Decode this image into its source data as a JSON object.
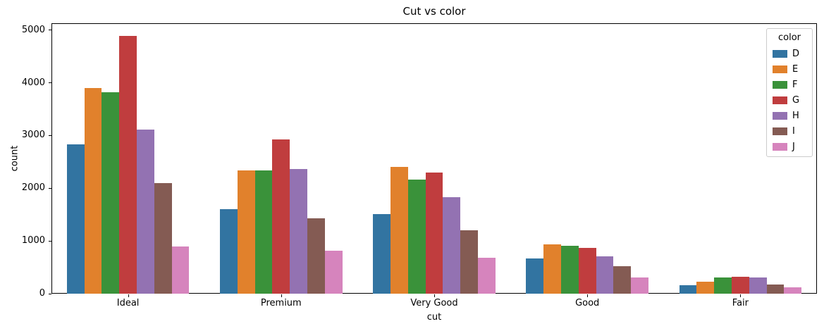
{
  "title": "Cut vs color",
  "axes": {
    "xlabel": "cut",
    "ylabel": "count",
    "ytick_labels": [
      "0",
      "1000",
      "2000",
      "3000",
      "4000",
      "5000"
    ]
  },
  "legend": {
    "title": "color",
    "entries": [
      {
        "label": "D",
        "color": "#3274a1"
      },
      {
        "label": "E",
        "color": "#e1812c"
      },
      {
        "label": "F",
        "color": "#3a923a"
      },
      {
        "label": "G",
        "color": "#c03d3e"
      },
      {
        "label": "H",
        "color": "#9372b2"
      },
      {
        "label": "I",
        "color": "#845b53"
      },
      {
        "label": "J",
        "color": "#d684bd"
      }
    ]
  },
  "chart_data": {
    "type": "bar",
    "title": "Cut vs color",
    "xlabel": "cut",
    "ylabel": "count",
    "categories": [
      "Ideal",
      "Premium",
      "Very Good",
      "Good",
      "Fair"
    ],
    "series": [
      {
        "name": "D",
        "color": "#3274a1",
        "values": [
          2834,
          1603,
          1513,
          662,
          163
        ]
      },
      {
        "name": "E",
        "color": "#e1812c",
        "values": [
          3903,
          2337,
          2400,
          933,
          224
        ]
      },
      {
        "name": "F",
        "color": "#3a923a",
        "values": [
          3826,
          2331,
          2164,
          909,
          312
        ]
      },
      {
        "name": "G",
        "color": "#c03d3e",
        "values": [
          4884,
          2924,
          2299,
          871,
          314
        ]
      },
      {
        "name": "H",
        "color": "#9372b2",
        "values": [
          3115,
          2360,
          1824,
          702,
          303
        ]
      },
      {
        "name": "I",
        "color": "#845b53",
        "values": [
          2093,
          1428,
          1204,
          522,
          175
        ]
      },
      {
        "name": "J",
        "color": "#d684bd",
        "values": [
          896,
          808,
          678,
          307,
          119
        ]
      }
    ],
    "yticks": [
      0,
      1000,
      2000,
      3000,
      4000,
      5000
    ],
    "ylim": [
      0,
      5128
    ],
    "group_width_fraction": 0.8,
    "grid": false,
    "legend_title": "color",
    "legend_position": "upper right"
  }
}
